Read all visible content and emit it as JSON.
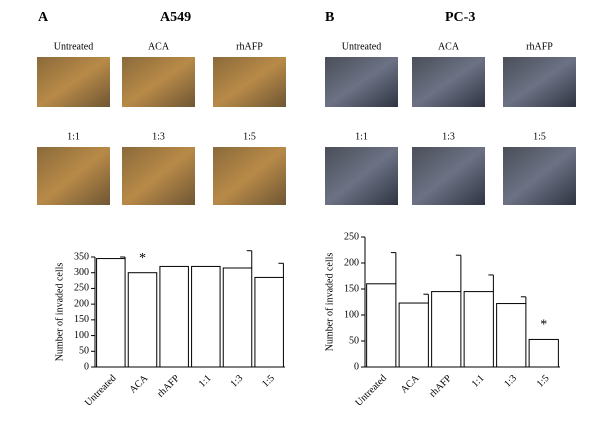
{
  "panels": [
    {
      "label": "A",
      "title": "A549",
      "images": [
        "Untreated",
        "ACA",
        "rhAFP",
        "1:1",
        "1:3",
        "1:5"
      ]
    },
    {
      "label": "B",
      "title": "PC-3",
      "images": [
        "Untreated",
        "ACA",
        "rhAFP",
        "1:1",
        "1:3",
        "1:5"
      ]
    }
  ],
  "chart_data": [
    {
      "type": "bar",
      "ylabel": "Number of invaded cells",
      "categories": [
        "Untreated",
        "ACA",
        "rhAFP",
        "1:1",
        "1:3",
        "1:5"
      ],
      "values": [
        345,
        300,
        320,
        320,
        315,
        285
      ],
      "errors": [
        5,
        null,
        null,
        null,
        55,
        45
      ],
      "color": "#ffffff",
      "edgecolor": "#000000",
      "ylim": [
        0,
        350
      ],
      "yticks": [
        0,
        50,
        100,
        150,
        200,
        250,
        300,
        350
      ],
      "annotations": [
        {
          "text": "*",
          "x": "ACA"
        }
      ]
    },
    {
      "type": "bar",
      "ylabel": "Number of invaded cells",
      "categories": [
        "Untreated",
        "ACA",
        "rhAFP",
        "1:1",
        "1:3",
        "1:5"
      ],
      "values": [
        160,
        123,
        145,
        145,
        122,
        53
      ],
      "errors": [
        60,
        17,
        70,
        32,
        13,
        null
      ],
      "color": "#ffffff",
      "edgecolor": "#000000",
      "ylim": [
        0,
        250
      ],
      "yticks": [
        0,
        50,
        100,
        150,
        200,
        250
      ],
      "annotations": [
        {
          "text": "*",
          "x": "1:5"
        }
      ]
    }
  ]
}
